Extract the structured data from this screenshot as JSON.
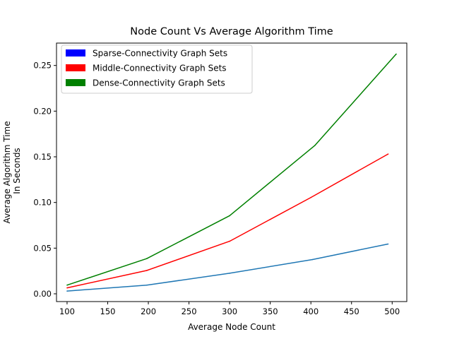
{
  "chart_data": {
    "type": "line",
    "title": "Node Count Vs Average Algorithm Time",
    "xlabel": "Average Node Count",
    "ylabel_lines": [
      "Average Algorithm Time",
      "In Seconds"
    ],
    "xlim": [
      87,
      518
    ],
    "ylim": [
      -0.0085,
      0.2745
    ],
    "xticks": [
      100,
      150,
      200,
      250,
      300,
      350,
      400,
      450,
      500
    ],
    "yticks": [
      0.0,
      0.05,
      0.1,
      0.15,
      0.2,
      0.25
    ],
    "ytick_labels": [
      "0.00",
      "0.05",
      "0.10",
      "0.15",
      "0.20",
      "0.25"
    ],
    "grid": false,
    "legend_placement": "upper-left",
    "legend": [
      {
        "label": "Sparse-Connectivity Graph Sets",
        "color": "#0000ff"
      },
      {
        "label": "Middle-Connectivity Graph Sets",
        "color": "#ff0000"
      },
      {
        "label": "Dense-Connectivity Graph Sets",
        "color": "#008000"
      }
    ],
    "series": [
      {
        "color": "#1f77b4",
        "x": [
          100,
          198,
          300,
          402,
          495
        ],
        "y": [
          0.003,
          0.0095,
          0.0225,
          0.0375,
          0.0545
        ]
      },
      {
        "color": "#ff0000",
        "x": [
          100,
          198,
          300,
          400,
          495
        ],
        "y": [
          0.0065,
          0.0255,
          0.0575,
          0.1055,
          0.153
        ]
      },
      {
        "color": "#008000",
        "x": [
          100,
          198,
          300,
          405,
          505
        ],
        "y": [
          0.0095,
          0.0385,
          0.0855,
          0.1625,
          0.2625
        ]
      }
    ]
  }
}
